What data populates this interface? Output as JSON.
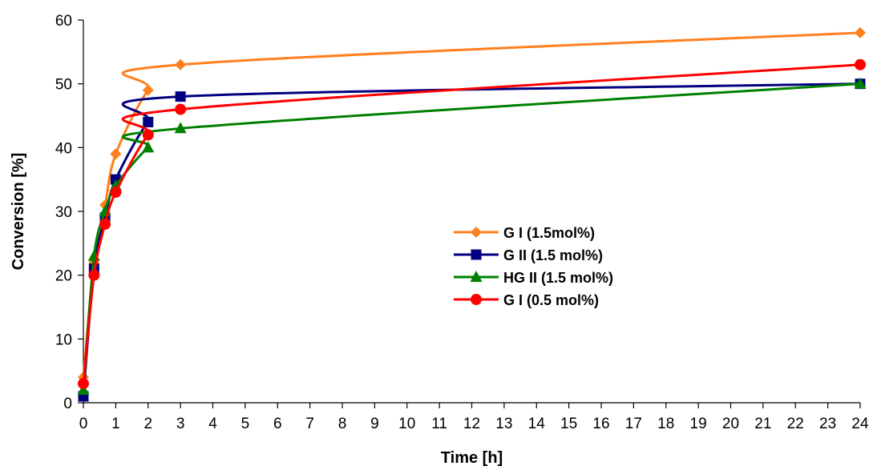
{
  "chart_data": {
    "type": "line",
    "title": "",
    "xlabel": "Time [h]",
    "ylabel": "Conversion [%]",
    "xlim": [
      0,
      24
    ],
    "ylim": [
      0,
      60
    ],
    "x_ticks": [
      0,
      1,
      2,
      3,
      4,
      5,
      6,
      7,
      8,
      9,
      10,
      11,
      12,
      13,
      14,
      15,
      16,
      17,
      18,
      19,
      20,
      21,
      22,
      23,
      24
    ],
    "y_ticks": [
      0,
      10,
      20,
      30,
      40,
      50,
      60
    ],
    "grid": false,
    "legend_position": "center-right",
    "series": [
      {
        "name": "G I (1.5mol%)",
        "color": "#FF7F1E",
        "marker": "diamond",
        "x": [
          0,
          0.33,
          0.67,
          1,
          2,
          3,
          24
        ],
        "y": [
          4,
          22,
          31,
          39,
          49,
          53,
          58
        ]
      },
      {
        "name": "G II (1.5 mol%)",
        "color": "#000080",
        "marker": "square",
        "x": [
          0,
          0.33,
          0.67,
          1,
          2,
          3,
          24
        ],
        "y": [
          1,
          21,
          29,
          35,
          44,
          48,
          50
        ]
      },
      {
        "name": "HG II (1.5 mol%)",
        "color": "#008000",
        "marker": "triangle",
        "x": [
          0,
          0.33,
          0.67,
          1,
          2,
          3,
          24
        ],
        "y": [
          2,
          23,
          30,
          34,
          40,
          43,
          50
        ]
      },
      {
        "name": "G I (0.5 mol%)",
        "color": "#FF0000",
        "marker": "circle",
        "x": [
          0,
          0.33,
          0.67,
          1,
          2,
          3,
          24
        ],
        "y": [
          3,
          20,
          28,
          33,
          42,
          46,
          53
        ]
      }
    ]
  }
}
